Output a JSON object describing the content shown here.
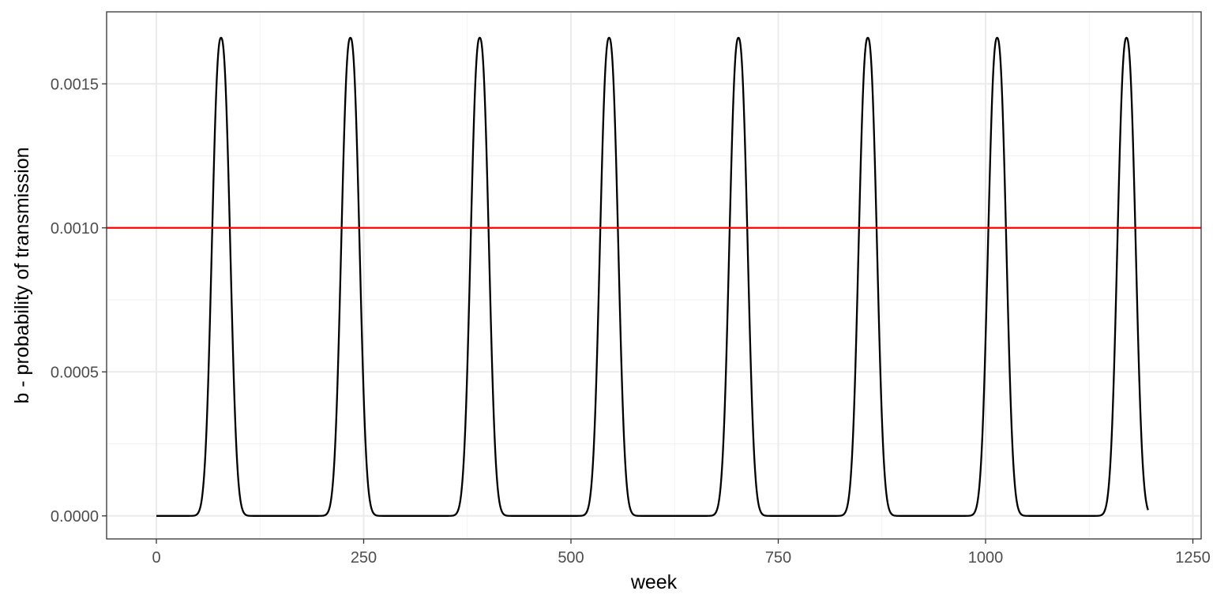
{
  "chart_data": {
    "type": "line",
    "title": "",
    "xlabel": "week",
    "ylabel": "b - probability of transmission",
    "xlim": [
      -60,
      1260
    ],
    "ylim": [
      -8e-05,
      0.00175
    ],
    "x_ticks": [
      0,
      250,
      500,
      750,
      1000,
      1250
    ],
    "x_tick_labels": [
      "0",
      "250",
      "500",
      "750",
      "1000",
      "1250"
    ],
    "y_ticks": [
      0.0,
      0.0005,
      0.001,
      0.0015
    ],
    "y_tick_labels": [
      "0.0000",
      "0.0005",
      "0.0010",
      "0.0015"
    ],
    "grid": true,
    "legend": "none",
    "series": [
      {
        "color": "#000000",
        "x_range": [
          0,
          1196
        ],
        "peak_weeks": [
          78,
          234,
          390,
          546,
          702,
          858,
          1014,
          1170
        ],
        "peak_value": 0.00166,
        "baseline": 0.0
      }
    ],
    "hlines": [
      {
        "y": 0.001,
        "color": "#ff0000"
      }
    ]
  }
}
